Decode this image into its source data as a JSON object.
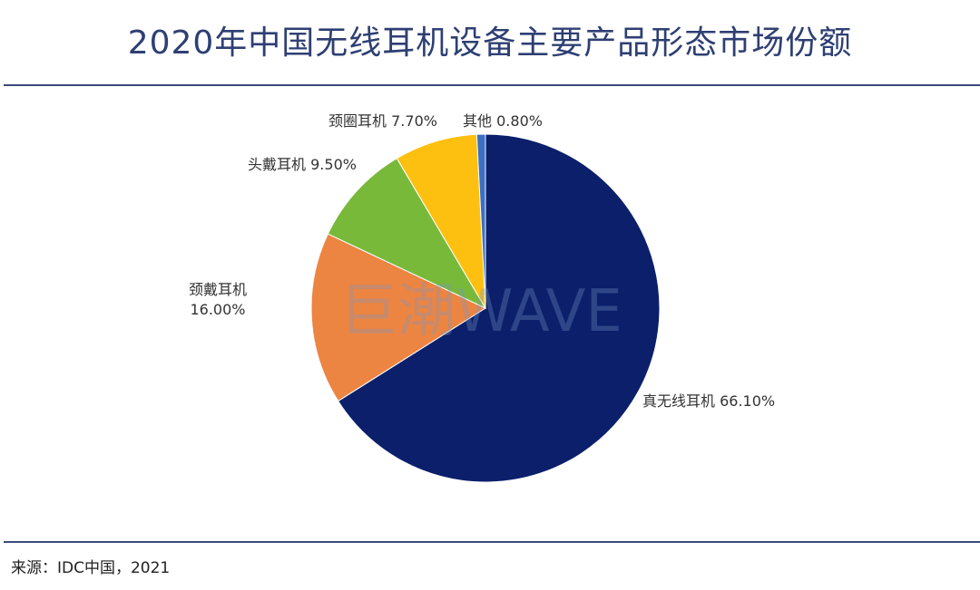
{
  "title": "2020年中国无线耳机设备主要产品形态市场份额",
  "source": "来源：IDC中国，2021",
  "watermark": "巨潮WAVE",
  "chart_data": {
    "type": "pie",
    "title": "2020年中国无线耳机设备主要产品形态市场份额",
    "unit": "%",
    "slices": [
      {
        "name": "真无线耳机",
        "value": 66.1,
        "label_line1": "真无线耳机 66.10%",
        "label_line2": "",
        "color": "#0b1f6b"
      },
      {
        "name": "颈戴耳机",
        "value": 16.0,
        "label_line1": "颈戴耳机",
        "label_line2": "16.00%",
        "color": "#ec8542"
      },
      {
        "name": "头戴耳机",
        "value": 9.5,
        "label_line1": "头戴耳机 9.50%",
        "label_line2": "",
        "color": "#79b93a"
      },
      {
        "name": "颈圈耳机",
        "value": 7.7,
        "label_line1": "颈圈耳机 7.70%",
        "label_line2": "",
        "color": "#fdc010"
      },
      {
        "name": "其他",
        "value": 0.8,
        "label_line1": "其他 0.80%",
        "label_line2": "",
        "color": "#3c6fc4"
      }
    ]
  }
}
